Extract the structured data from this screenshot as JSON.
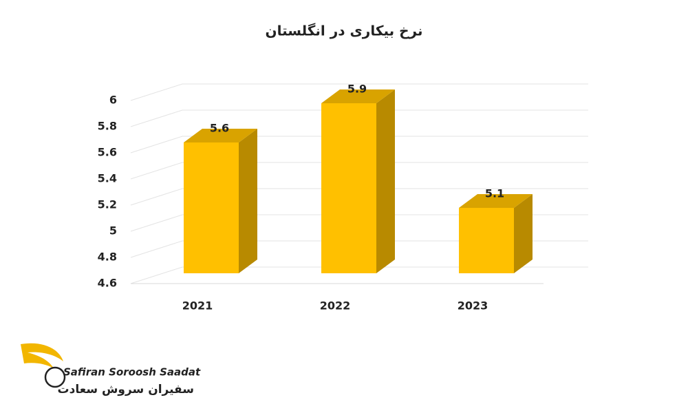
{
  "chart_data": {
    "type": "bar3d",
    "title": "نرخ بیکاری در انگلستان",
    "categories": [
      "2021",
      "2022",
      "2023"
    ],
    "values": [
      5.6,
      5.9,
      5.1
    ],
    "color": "#ffc000",
    "ylim": [
      4.6,
      6
    ],
    "yticks": [
      4.6,
      4.8,
      5,
      5.2,
      5.4,
      5.6,
      5.8,
      6
    ],
    "grid": true
  },
  "logo": {
    "name": "Safiran Soroosh Saadat",
    "name_fa": "سفیران سروش سعادت"
  }
}
